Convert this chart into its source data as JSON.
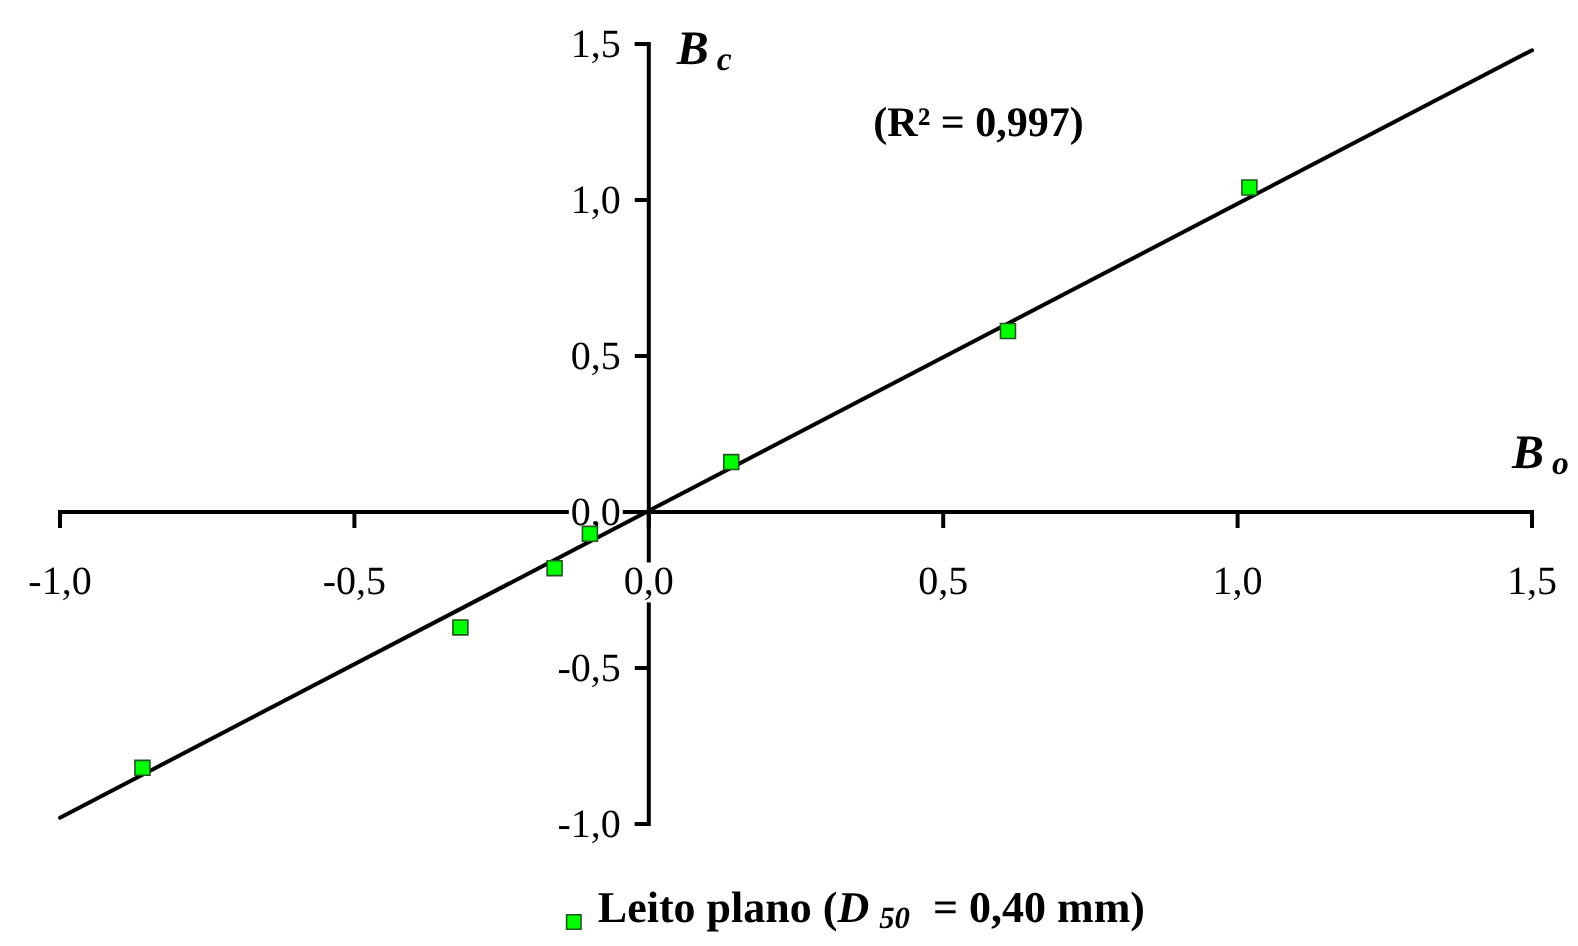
{
  "chart_data": {
    "type": "scatter",
    "xlabel": "B$_{o}$",
    "ylabel": "B$_{c}$",
    "annotations": [
      "(R² = 0,997)"
    ],
    "x": [
      -0.86,
      -0.32,
      -0.16,
      -0.1,
      0.14,
      0.61,
      1.02
    ],
    "series": [
      {
        "name": "Leito plano (D$_{50}$ = 0,40 mm)",
        "color": "#00ff00",
        "values": [
          -0.82,
          -0.37,
          -0.18,
          -0.07,
          0.16,
          0.58,
          1.04
        ]
      },
      {
        "type": "line",
        "color": "#000000",
        "marker": "none",
        "x": [
          -1.0,
          1.5
        ],
        "values": [
          -0.98,
          1.48
        ]
      }
    ],
    "xlim": [
      -1.0,
      1.5
    ],
    "ylim": [
      -1.0,
      1.5
    ],
    "xticks": [
      {
        "value": -1.0,
        "label": "-1,0"
      },
      {
        "value": -0.5,
        "label": "-0,5"
      },
      {
        "value": 0,
        "label": "0,0"
      },
      {
        "value": 0.5,
        "label": "0,5"
      },
      {
        "value": 1.0,
        "label": "1,0"
      },
      {
        "value": 1.5,
        "label": "1,5"
      }
    ],
    "yticks": [
      {
        "value": -1.0,
        "label": "-1,0"
      },
      {
        "value": -0.5,
        "label": "-0,5"
      },
      {
        "value": 0,
        "label": "0,0"
      },
      {
        "value": 0.5,
        "label": "0,5"
      },
      {
        "value": 1.0,
        "label": "1,0"
      },
      {
        "value": 1.5,
        "label": "1,5"
      }
    ],
    "legend": "bottom",
    "marker": "square"
  }
}
